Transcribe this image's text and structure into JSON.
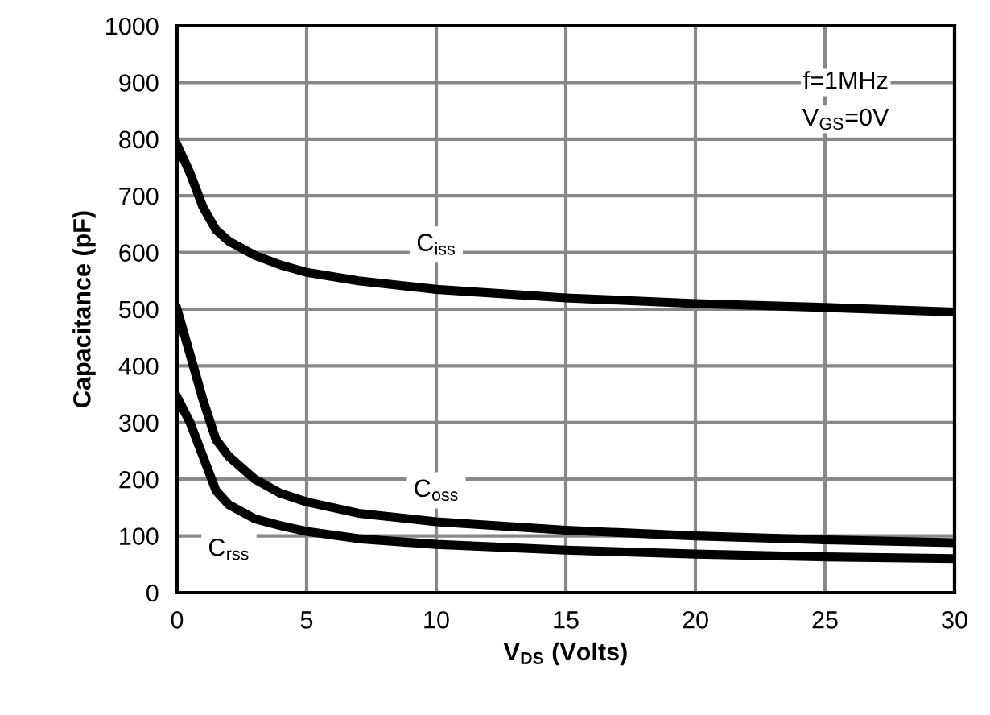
{
  "chart_data": {
    "type": "line",
    "xlabel": "V$_{DS}$ (Volts)",
    "ylabel": "Capacitance (pF)",
    "x": [
      0,
      0.5,
      1,
      1.5,
      2,
      3,
      4,
      5,
      7,
      10,
      15,
      20,
      25,
      30
    ],
    "series": [
      {
        "name": "C$_{iss}$",
        "color": "#000000",
        "values": [
          790,
          740,
          680,
          640,
          620,
          595,
          578,
          565,
          550,
          535,
          520,
          510,
          503,
          495
        ]
      },
      {
        "name": "C$_{oss}$",
        "color": "#000000",
        "values": [
          500,
          420,
          340,
          270,
          240,
          200,
          175,
          160,
          140,
          125,
          110,
          100,
          93,
          88
        ]
      },
      {
        "name": "C$_{rss}$",
        "color": "#000000",
        "values": [
          345,
          300,
          240,
          180,
          155,
          130,
          118,
          108,
          95,
          85,
          75,
          68,
          63,
          60
        ]
      }
    ],
    "annotations": [
      "f=1MHz",
      "V$_{GS}$=0V"
    ],
    "xlim": [
      0,
      30
    ],
    "ylim": [
      0,
      1000
    ],
    "xticks": [
      0,
      5,
      10,
      15,
      20,
      25,
      30
    ],
    "yticks": [
      0,
      100,
      200,
      300,
      400,
      500,
      600,
      700,
      800,
      900,
      1000
    ],
    "grid": true,
    "legend": false,
    "marker": "none",
    "line_style": "solid"
  }
}
